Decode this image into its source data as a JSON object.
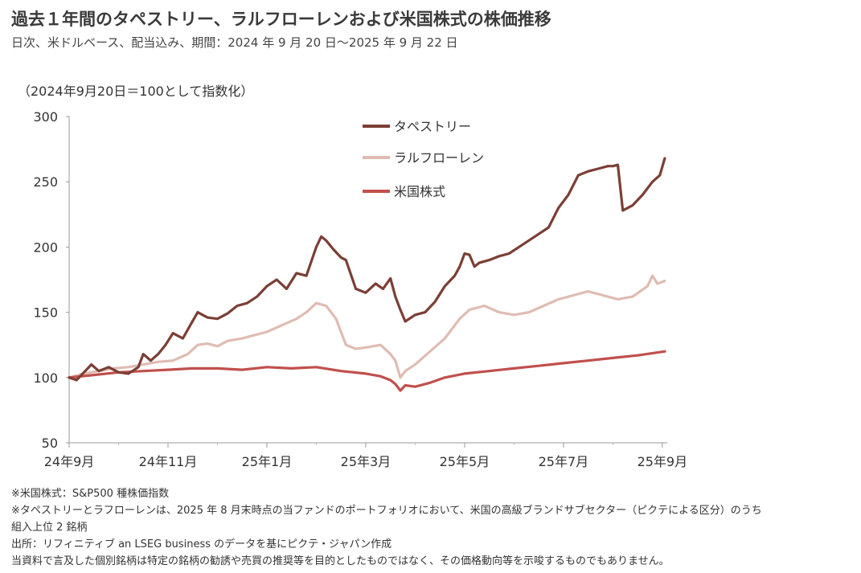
{
  "header": {
    "title": "過去１年間のタペストリー、ラルフローレンおよび米国株式の株価推移",
    "subtitle": "日次、米ドルベース、配当込み、期間：2024 年 9 月 20 日～2025 年 9 月 22 日",
    "y_unit_note": "（2024年9月20日＝100として指数化）"
  },
  "footnotes": [
    "※米国株式：S&P500 種株価指数",
    "※タペストリーとラフローレンは、2025 年 8 月末時点の当ファンドのポートフォリオにおいて、米国の高級ブランドサブセクター（ピクテによる区分）のうち",
    "組入上位 2 銘柄",
    "出所：リフィニティブ an LSEG business のデータを基にピクテ・ジャパン作成",
    "当資料で言及した個別銘柄は特定の銘柄の勧誘や売買の推奨等を目的としたものではなく、その価格動向等を示唆するものでもありません。"
  ],
  "chart_data": {
    "type": "line",
    "title": "",
    "xlabel": "",
    "ylabel": "（2024年9月20日＝100として指数化）",
    "ylim": [
      50,
      300
    ],
    "yticks": [
      50,
      100,
      150,
      200,
      250,
      300
    ],
    "xlim": [
      0,
      12.1
    ],
    "xticks": [
      {
        "x": 0,
        "label": "24年9月"
      },
      {
        "x": 2,
        "label": "24年11月"
      },
      {
        "x": 4,
        "label": "25年1月"
      },
      {
        "x": 6,
        "label": "25年3月"
      },
      {
        "x": 8,
        "label": "25年5月"
      },
      {
        "x": 10,
        "label": "25年7月"
      },
      {
        "x": 12,
        "label": "25年9月"
      }
    ],
    "grid": false,
    "legend": "top-center",
    "series": [
      {
        "name": "タペストリー",
        "color": "#7b3f35",
        "x": [
          0,
          0.15,
          0.3,
          0.45,
          0.6,
          0.8,
          1.0,
          1.2,
          1.4,
          1.5,
          1.65,
          1.8,
          1.95,
          2.1,
          2.3,
          2.45,
          2.6,
          2.8,
          3.0,
          3.2,
          3.4,
          3.6,
          3.8,
          4.0,
          4.2,
          4.4,
          4.6,
          4.8,
          5.0,
          5.1,
          5.2,
          5.35,
          5.5,
          5.6,
          5.8,
          6.0,
          6.2,
          6.35,
          6.5,
          6.6,
          6.7,
          6.8,
          7.0,
          7.2,
          7.4,
          7.6,
          7.8,
          7.9,
          8.0,
          8.1,
          8.2,
          8.3,
          8.5,
          8.7,
          8.9,
          9.1,
          9.3,
          9.5,
          9.7,
          9.9,
          10.1,
          10.3,
          10.5,
          10.7,
          10.9,
          11.0,
          11.1,
          11.2,
          11.4,
          11.6,
          11.8,
          11.95,
          12.05
        ],
        "values": [
          100,
          98,
          104,
          110,
          105,
          108,
          104,
          103,
          108,
          118,
          113,
          118,
          125,
          134,
          130,
          140,
          150,
          146,
          145,
          149,
          155,
          157,
          162,
          170,
          175,
          168,
          180,
          178,
          200,
          208,
          205,
          198,
          192,
          190,
          168,
          165,
          172,
          168,
          176,
          162,
          152,
          143,
          148,
          150,
          158,
          170,
          178,
          185,
          195,
          194,
          185,
          188,
          190,
          193,
          195,
          200,
          205,
          210,
          215,
          230,
          240,
          255,
          258,
          260,
          262,
          262,
          263,
          228,
          232,
          240,
          250,
          255,
          268
        ]
      },
      {
        "name": "ラルフローレン",
        "color": "#dfbcb2",
        "x": [
          0,
          0.3,
          0.6,
          0.9,
          1.2,
          1.5,
          1.8,
          2.1,
          2.4,
          2.6,
          2.8,
          3.0,
          3.2,
          3.5,
          3.8,
          4.0,
          4.3,
          4.6,
          4.8,
          5.0,
          5.2,
          5.4,
          5.6,
          5.8,
          6.0,
          6.3,
          6.5,
          6.6,
          6.7,
          6.8,
          7.0,
          7.3,
          7.6,
          7.9,
          8.1,
          8.4,
          8.7,
          9.0,
          9.3,
          9.6,
          9.9,
          10.2,
          10.5,
          10.8,
          11.1,
          11.4,
          11.7,
          11.8,
          11.9,
          12.05
        ],
        "values": [
          100,
          103,
          105,
          107,
          108,
          110,
          112,
          113,
          118,
          125,
          126,
          124,
          128,
          130,
          133,
          135,
          140,
          145,
          150,
          157,
          155,
          145,
          125,
          122,
          123,
          125,
          118,
          113,
          100,
          105,
          110,
          120,
          130,
          145,
          152,
          155,
          150,
          148,
          150,
          155,
          160,
          163,
          166,
          163,
          160,
          162,
          170,
          178,
          172,
          174
        ]
      },
      {
        "name": "米国株式",
        "color": "#c0504d",
        "x": [
          0,
          0.5,
          1.0,
          1.5,
          2.0,
          2.5,
          3.0,
          3.5,
          4.0,
          4.5,
          5.0,
          5.5,
          6.0,
          6.3,
          6.5,
          6.6,
          6.7,
          6.8,
          7.0,
          7.3,
          7.6,
          8.0,
          8.5,
          9.0,
          9.5,
          10.0,
          10.5,
          11.0,
          11.5,
          12.05
        ],
        "values": [
          100,
          102,
          104,
          105,
          106,
          107,
          107,
          106,
          108,
          107,
          108,
          105,
          103,
          101,
          98,
          95,
          90,
          94,
          93,
          96,
          100,
          103,
          105,
          107,
          109,
          111,
          113,
          115,
          117,
          120
        ]
      }
    ]
  }
}
